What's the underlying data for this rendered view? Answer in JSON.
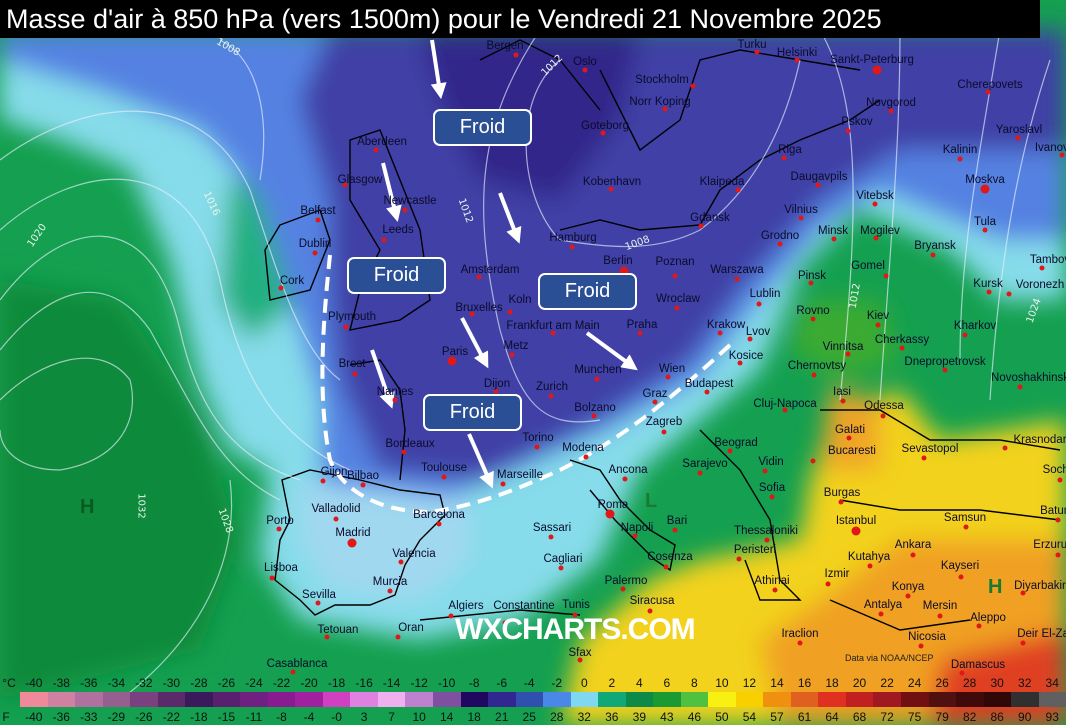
{
  "title": "Masse d'air à 850 hPa (vers 1500m) pour le Vendredi 21 Novembre 2025",
  "annotations": {
    "froid_labels": [
      "Froid",
      "Froid",
      "Froid",
      "Froid"
    ]
  },
  "watermark": "WXCHARTS.COM",
  "credit": "Data via NOAA/NCEP",
  "pressure_centers": [
    {
      "label": "H"
    },
    {
      "label": "H"
    },
    {
      "label": "L"
    }
  ],
  "isobar_labels": [
    "1008",
    "1012",
    "1012",
    "1016",
    "1020",
    "1024",
    "1028",
    "1032",
    "1012",
    "1008"
  ],
  "cities": [
    "Bergen",
    "Oslo",
    "Turku",
    "Helsinki",
    "Sankt-Peterburg",
    "Stockholm",
    "Norr Koping",
    "Cherepovets",
    "Novgorod",
    "Aberdeen",
    "Goteborg",
    "Pskov",
    "Yaroslavl",
    "Kalinin",
    "Ivanovo",
    "Riga",
    "Glasgow",
    "Kobenhavn",
    "Klaipeda",
    "Daugavpils",
    "Moskva",
    "Vitebsk",
    "Newcastle",
    "Belfast",
    "Gdansk",
    "Vilnius",
    "Tula",
    "Leeds",
    "Hamburg",
    "Grodno",
    "Minsk",
    "Mogilev",
    "Dublin",
    "Bryansk",
    "Tambov",
    "Berlin",
    "Poznan",
    "Warszawa",
    "Amsterdam",
    "Cork",
    "Pinsk",
    "Gomel",
    "Kursk",
    "Voronezh",
    "Wroclaw",
    "Lublin",
    "Bruxelles",
    "Koln",
    "Plymouth",
    "Frankfurt am Main",
    "Praha",
    "Krakow",
    "Rovno",
    "Kiev",
    "Kharkov",
    "Lvov",
    "Cherkassy",
    "Vinnitsa",
    "Dnepropetrovsk",
    "Kosice",
    "Paris",
    "Metz",
    "Brest",
    "Chernovtsy",
    "Novoshakhinsk",
    "Munchen",
    "Wien",
    "Budapest",
    "Zurich",
    "Dijon",
    "Nantes",
    "Iasi",
    "Graz",
    "Cluj-Napoca",
    "Bolzano",
    "Odessa",
    "Zagreb",
    "Galati",
    "Bordeaux",
    "Torino",
    "Krasnodar",
    "Modena",
    "Beograd",
    "Bucaresti",
    "Sevastopol",
    "Toulouse",
    "Marseille",
    "Sarajevo",
    "Vidin",
    "Sochi",
    "Gijon",
    "Bilbao",
    "Ancona",
    "Sofia",
    "Burgas",
    "Batumi",
    "Roma",
    "Valladolid",
    "Barcelona",
    "Bari",
    "Istanbul",
    "Samsun",
    "Napoli",
    "Porto",
    "Sassari",
    "Madrid",
    "Thessaloniki",
    "Ankara",
    "Erzurum",
    "Kayseri",
    "Valencia",
    "Peristeri",
    "Cosenza",
    "Kutahya",
    "Cagliari",
    "Diyarbakir",
    "Izmir",
    "Athinai",
    "Konya",
    "Lisboa",
    "Murcia",
    "Palermo",
    "Siracusa",
    "Antalya",
    "Mersin",
    "Sevilla",
    "Tunis",
    "Algiers",
    "Constantine",
    "Aleppo",
    "Oran",
    "Tetouan",
    "Iraclion",
    "Nicosia",
    "Deir El-Zar",
    "Sfax",
    "Casablanca",
    "Damascus"
  ],
  "legend": {
    "celsius_unit": "°C",
    "fahrenheit_unit": "F",
    "celsius": [
      "-40",
      "-38",
      "-36",
      "-34",
      "-32",
      "-30",
      "-28",
      "-26",
      "-24",
      "-22",
      "-20",
      "-18",
      "-16",
      "-14",
      "-12",
      "-10",
      "-8",
      "-6",
      "-4",
      "-2",
      "0",
      "2",
      "4",
      "6",
      "8",
      "10",
      "12",
      "14",
      "16",
      "18",
      "20",
      "22",
      "24",
      "26",
      "28",
      "30",
      "32",
      "34"
    ],
    "fahrenheit": [
      "-40",
      "-36",
      "-33",
      "-29",
      "-26",
      "-22",
      "-18",
      "-15",
      "-11",
      "-8",
      "-4",
      "-0",
      "3",
      "7",
      "10",
      "14",
      "18",
      "21",
      "25",
      "28",
      "32",
      "36",
      "39",
      "43",
      "46",
      "50",
      "54",
      "57",
      "61",
      "64",
      "68",
      "72",
      "75",
      "79",
      "82",
      "86",
      "90",
      "93"
    ],
    "colors": [
      "#f08a9a",
      "#d080a0",
      "#b070a0",
      "#956090",
      "#7a4080",
      "#5a2a6a",
      "#3a1a5a",
      "#5a2070",
      "#702080",
      "#8a1a90",
      "#a020a0",
      "#d040c0",
      "#e080e0",
      "#f0b0f0",
      "#c080d0",
      "#8050a0",
      "#200860",
      "#302890",
      "#3050b0",
      "#4a88e8",
      "#80d8f0",
      "#10a878",
      "#0c8a48",
      "#1a9a30",
      "#50c040",
      "#f8f010",
      "#f8d000",
      "#f09010",
      "#e06020",
      "#e03020",
      "#c02020",
      "#a01820",
      "#701010",
      "#501010",
      "#400a0a",
      "#300808",
      "#303030",
      "#606060"
    ]
  },
  "colors": {
    "froid_box": "#2a4f94",
    "dashed_front": "#ffffff",
    "city_dot": "#e01818"
  }
}
